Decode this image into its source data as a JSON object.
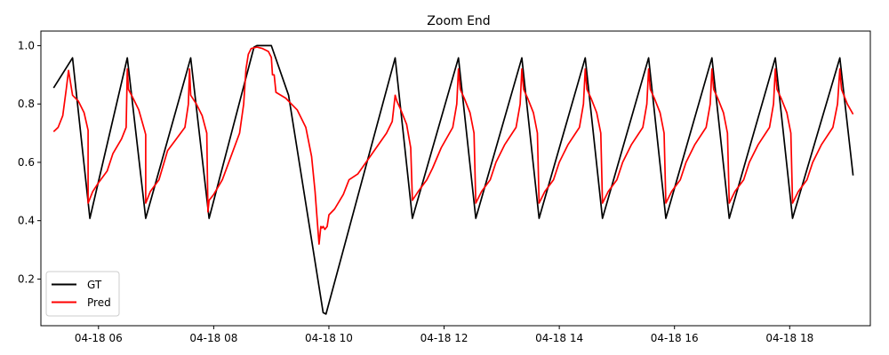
{
  "chart_data": {
    "type": "line",
    "title": "Zoom End",
    "xlabel": "",
    "ylabel": "",
    "x_unit": "hours",
    "xlim": [
      5.0,
      19.4
    ],
    "ylim": [
      0.04,
      1.05
    ],
    "x_ticks": [
      {
        "value": 6,
        "label": "04-18 06"
      },
      {
        "value": 8,
        "label": "04-18 08"
      },
      {
        "value": 10,
        "label": "04-18 10"
      },
      {
        "value": 12,
        "label": "04-18 12"
      },
      {
        "value": 14,
        "label": "04-18 14"
      },
      {
        "value": 16,
        "label": "04-18 16"
      },
      {
        "value": 18,
        "label": "04-18 18"
      }
    ],
    "y_ticks": [
      {
        "value": 0.2,
        "label": "0.2"
      },
      {
        "value": 0.4,
        "label": "0.4"
      },
      {
        "value": 0.6,
        "label": "0.6"
      },
      {
        "value": 0.8,
        "label": "0.8"
      },
      {
        "value": 1.0,
        "label": "1.0"
      }
    ],
    "grid": false,
    "legend": "lower-left",
    "series": [
      {
        "name": "GT",
        "color": "#000000",
        "x": [
          5.22,
          5.55,
          5.85,
          6.5,
          6.82,
          7.6,
          7.92,
          8.7,
          8.75,
          9.0,
          9.3,
          9.9,
          9.95,
          11.15,
          11.45,
          12.25,
          12.55,
          13.35,
          13.65,
          14.45,
          14.75,
          15.55,
          15.85,
          16.65,
          16.95,
          17.75,
          18.05,
          18.87,
          19.1
        ],
        "values": [
          0.855,
          0.958,
          0.408,
          0.958,
          0.408,
          0.958,
          0.408,
          0.995,
          1.0,
          1.0,
          0.83,
          0.085,
          0.08,
          0.958,
          0.408,
          0.958,
          0.408,
          0.958,
          0.408,
          0.958,
          0.408,
          0.958,
          0.408,
          0.958,
          0.408,
          0.958,
          0.408,
          0.958,
          0.555
        ]
      },
      {
        "name": "Pred",
        "color": "#ff0000",
        "x": [
          5.22,
          5.3,
          5.38,
          5.44,
          5.48,
          5.55,
          5.65,
          5.75,
          5.82,
          5.82,
          5.9,
          6.0,
          6.15,
          6.25,
          6.4,
          6.48,
          6.5,
          6.52,
          6.6,
          6.7,
          6.8,
          6.82,
          6.82,
          6.9,
          7.05,
          7.2,
          7.35,
          7.5,
          7.56,
          7.58,
          7.6,
          7.7,
          7.8,
          7.88,
          7.9,
          7.92,
          8.0,
          8.15,
          8.3,
          8.45,
          8.52,
          8.56,
          8.6,
          8.65,
          8.75,
          8.85,
          8.95,
          9.0,
          9.02,
          9.05,
          9.08,
          9.25,
          9.45,
          9.6,
          9.7,
          9.76,
          9.81,
          9.83,
          9.86,
          9.88,
          9.9,
          9.93,
          9.97,
          10.0,
          10.1,
          10.25,
          10.35,
          10.5,
          10.75,
          11.0,
          11.1,
          11.15,
          11.18,
          11.25,
          11.35,
          11.42,
          11.45,
          11.45,
          11.55,
          11.7,
          11.8,
          11.95,
          12.15,
          12.22,
          12.25,
          12.28,
          12.35,
          12.45,
          12.52,
          12.55,
          12.55,
          12.65,
          12.8,
          12.9,
          13.05,
          13.25,
          13.32,
          13.35,
          13.38,
          13.45,
          13.55,
          13.62,
          13.65,
          13.65,
          13.75,
          13.9,
          14.0,
          14.15,
          14.35,
          14.42,
          14.45,
          14.48,
          14.55,
          14.65,
          14.72,
          14.75,
          14.75,
          14.85,
          15.0,
          15.1,
          15.25,
          15.45,
          15.52,
          15.55,
          15.58,
          15.65,
          15.75,
          15.82,
          15.85,
          15.85,
          15.95,
          16.1,
          16.2,
          16.35,
          16.55,
          16.62,
          16.65,
          16.68,
          16.75,
          16.85,
          16.92,
          16.95,
          16.95,
          17.05,
          17.2,
          17.3,
          17.45,
          17.65,
          17.72,
          17.75,
          17.78,
          17.85,
          17.95,
          18.02,
          18.05,
          18.05,
          18.15,
          18.3,
          18.4,
          18.55,
          18.75,
          18.83,
          18.87,
          18.9,
          19.0,
          19.1
        ],
        "values": [
          0.705,
          0.72,
          0.76,
          0.85,
          0.915,
          0.83,
          0.81,
          0.77,
          0.71,
          0.46,
          0.5,
          0.53,
          0.57,
          0.63,
          0.68,
          0.72,
          0.92,
          0.85,
          0.82,
          0.78,
          0.71,
          0.695,
          0.46,
          0.5,
          0.54,
          0.64,
          0.68,
          0.72,
          0.8,
          0.92,
          0.83,
          0.8,
          0.76,
          0.7,
          0.43,
          0.47,
          0.49,
          0.54,
          0.62,
          0.7,
          0.8,
          0.92,
          0.97,
          0.99,
          0.995,
          0.99,
          0.98,
          0.96,
          0.9,
          0.9,
          0.84,
          0.82,
          0.78,
          0.72,
          0.62,
          0.5,
          0.37,
          0.32,
          0.38,
          0.375,
          0.38,
          0.37,
          0.38,
          0.42,
          0.44,
          0.49,
          0.54,
          0.56,
          0.63,
          0.7,
          0.74,
          0.83,
          0.81,
          0.78,
          0.73,
          0.65,
          0.47,
          0.47,
          0.5,
          0.54,
          0.58,
          0.65,
          0.72,
          0.8,
          0.92,
          0.85,
          0.82,
          0.77,
          0.7,
          0.46,
          0.46,
          0.5,
          0.54,
          0.6,
          0.66,
          0.72,
          0.8,
          0.92,
          0.85,
          0.82,
          0.77,
          0.7,
          0.46,
          0.46,
          0.5,
          0.54,
          0.6,
          0.66,
          0.72,
          0.8,
          0.92,
          0.85,
          0.82,
          0.77,
          0.7,
          0.46,
          0.46,
          0.5,
          0.54,
          0.6,
          0.66,
          0.72,
          0.8,
          0.92,
          0.85,
          0.82,
          0.77,
          0.7,
          0.46,
          0.46,
          0.5,
          0.54,
          0.6,
          0.66,
          0.72,
          0.8,
          0.92,
          0.85,
          0.82,
          0.77,
          0.7,
          0.46,
          0.46,
          0.5,
          0.54,
          0.6,
          0.66,
          0.72,
          0.8,
          0.92,
          0.85,
          0.82,
          0.77,
          0.7,
          0.46,
          0.46,
          0.5,
          0.54,
          0.6,
          0.66,
          0.72,
          0.8,
          0.92,
          0.85,
          0.8,
          0.765
        ]
      }
    ]
  }
}
